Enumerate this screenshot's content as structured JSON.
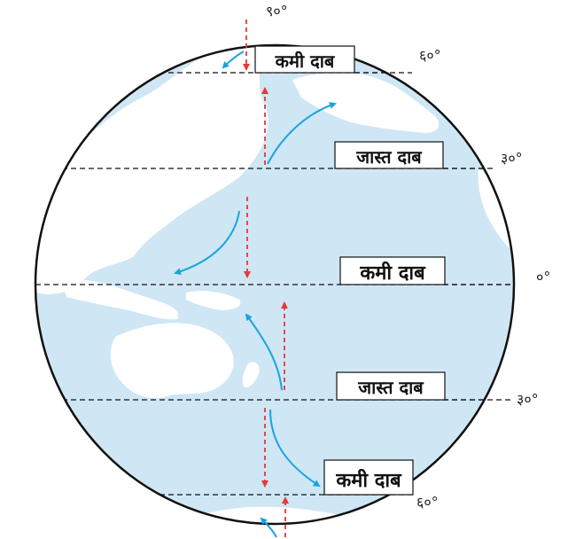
{
  "colors": {
    "ocean": "#cfe6f5",
    "land": "#ffffff",
    "globe_border": "#111111",
    "latitude_line": "#111111",
    "surface_wind": "#1aa3e0",
    "vertical_air": "#e53935"
  },
  "icons": [
    "globe-outline",
    "dashed-latitude-line",
    "blue-curved-arrow",
    "red-dashed-arrow"
  ],
  "latitude_labels": {
    "north_pole": "९०°",
    "north_60": "६०°",
    "north_30": "३०°",
    "equator": "०°",
    "south_30": "३०°",
    "south_60": "६०°"
  },
  "pressure_labels": {
    "north_60": "कमी दाब",
    "north_30": "जास्त दाब",
    "equator": "कमी दाब",
    "south_30": "जास्त दाब",
    "south_60": "कमी दाब"
  }
}
